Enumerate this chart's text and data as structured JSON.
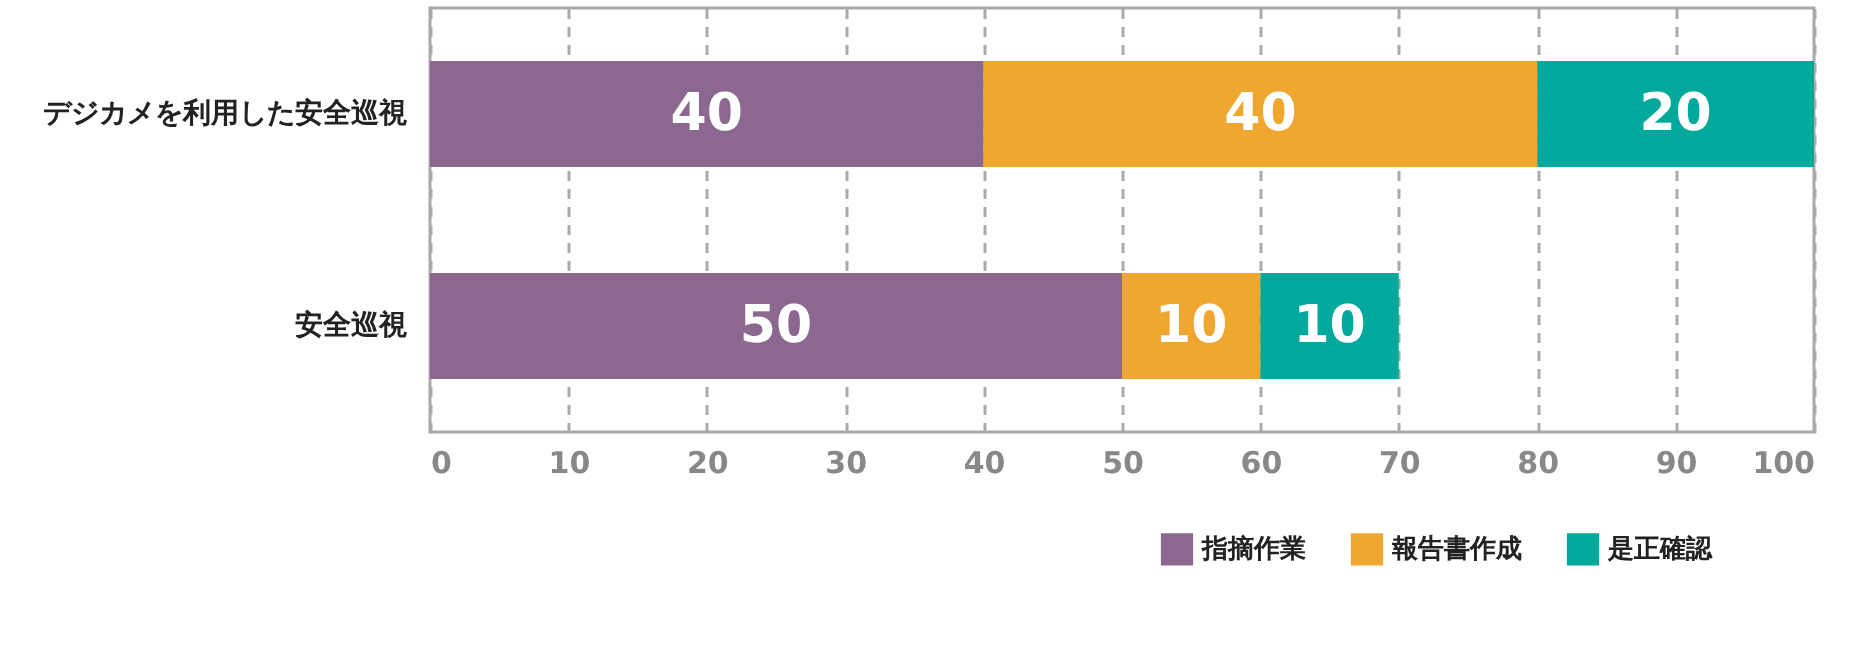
{
  "chart_data": {
    "type": "bar",
    "orientation": "horizontal",
    "stacked": true,
    "categories": [
      "デジカメを利用した安全巡視",
      "安全巡視"
    ],
    "series": [
      {
        "name": "指摘作業",
        "color": "#8c6890",
        "values": [
          40,
          50
        ]
      },
      {
        "name": "報告書作成",
        "color": "#f0a72f",
        "values": [
          40,
          10
        ]
      },
      {
        "name": "是正確認",
        "color": "#00a99c",
        "values": [
          20,
          10
        ]
      }
    ],
    "xlim": [
      0,
      100
    ],
    "xticks": [
      0,
      10,
      20,
      30,
      40,
      50,
      60,
      70,
      80,
      90,
      100
    ],
    "grid": "x",
    "data_labels": true,
    "legend": "bottom right"
  }
}
